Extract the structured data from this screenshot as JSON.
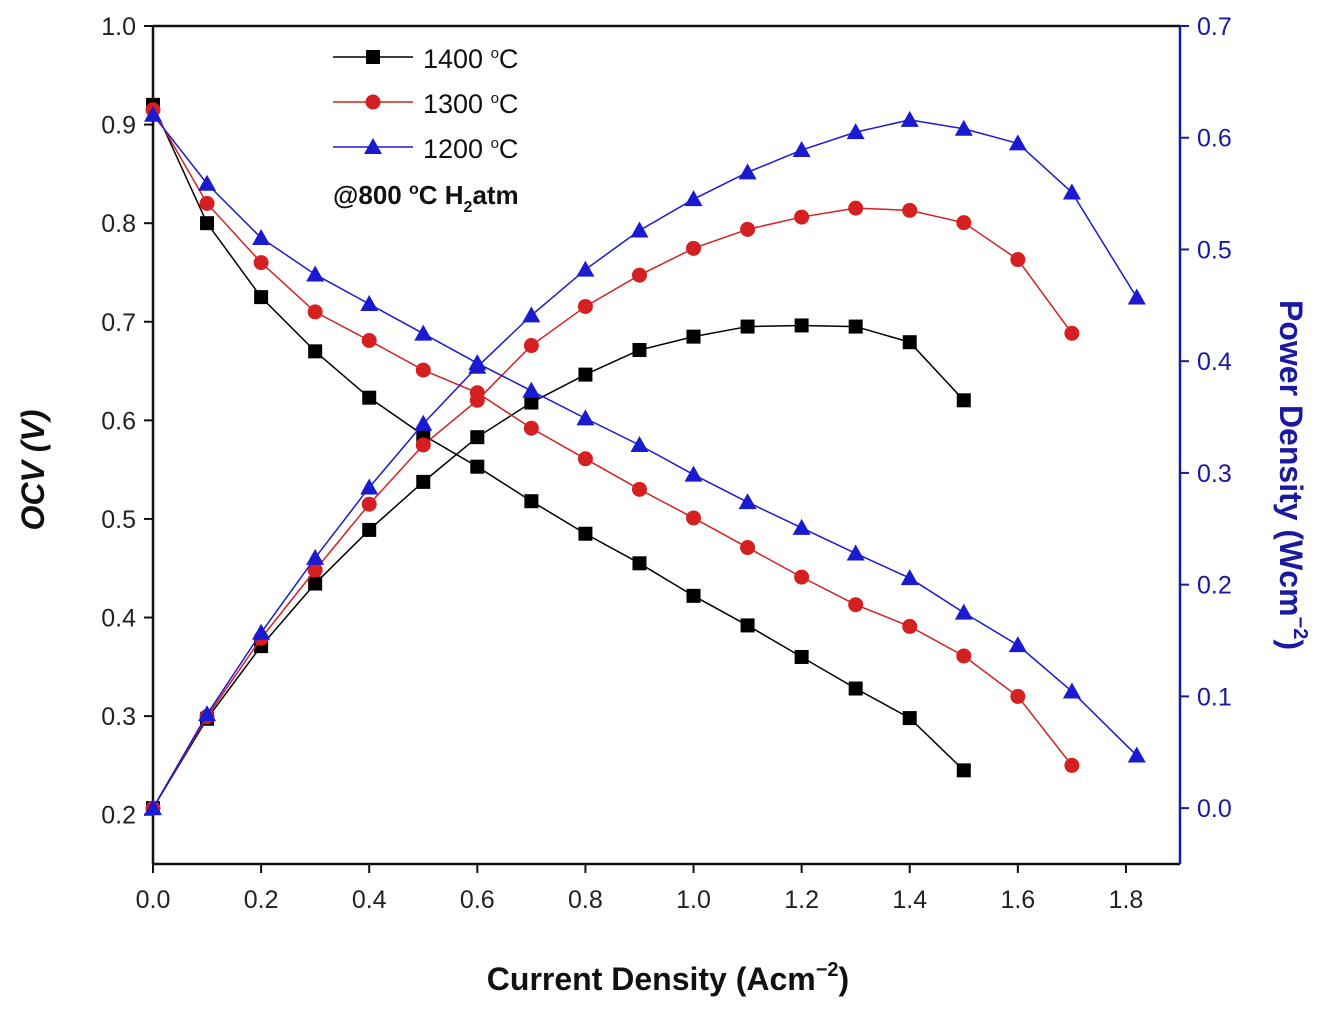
{
  "chart_data": {
    "type": "line",
    "title": "",
    "xlabel": "Current Density (Acm",
    "xlabel_sup": "−2",
    "xlabel_end": ")",
    "ylabel_left": "OCV (V)",
    "ylabel_right": "Power Density (Wcm",
    "ylabel_right_sup": "−2",
    "ylabel_right_end": ")",
    "xlim": [
      0.0,
      1.9
    ],
    "ylim_left": [
      0.15,
      1.0
    ],
    "ylim_right": [
      -0.05,
      0.7
    ],
    "x_ticks": [
      "0.0",
      "0.2",
      "0.4",
      "0.6",
      "0.8",
      "1.0",
      "1.2",
      "1.4",
      "1.6",
      "1.8"
    ],
    "y_left_ticks": [
      "0.2",
      "0.3",
      "0.4",
      "0.5",
      "0.6",
      "0.7",
      "0.8",
      "0.9",
      "1.0"
    ],
    "y_right_ticks": [
      "0.0",
      "0.1",
      "0.2",
      "0.3",
      "0.4",
      "0.5",
      "0.6",
      "0.7"
    ],
    "right_axis_color": "#1a1aa0",
    "annotation": {
      "prefix": "@800 ",
      "degree": "o",
      "mid": "C H",
      "sub": "2",
      "suffix": "atm"
    },
    "legend_degree": "o",
    "legend_unit": "C",
    "series": [
      {
        "name": "1400",
        "color": "#000000",
        "marker": "square",
        "x": [
          0.0,
          0.1,
          0.2,
          0.3,
          0.4,
          0.5,
          0.6,
          0.7,
          0.8,
          0.9,
          1.0,
          1.1,
          1.2,
          1.3,
          1.4,
          1.5
        ],
        "voltage": [
          0.92,
          0.8,
          0.725,
          0.67,
          0.623,
          0.585,
          0.553,
          0.518,
          0.485,
          0.455,
          0.422,
          0.392,
          0.36,
          0.328,
          0.298,
          0.245
        ],
        "power": [
          0.0,
          0.08,
          0.145,
          0.201,
          0.249,
          0.292,
          0.332,
          0.363,
          0.388,
          0.41,
          0.422,
          0.431,
          0.432,
          0.431,
          0.417,
          0.365
        ]
      },
      {
        "name": "1300",
        "color": "#d42020",
        "marker": "circle",
        "x": [
          0.0,
          0.1,
          0.2,
          0.3,
          0.4,
          0.5,
          0.6,
          0.7,
          0.8,
          0.9,
          1.0,
          1.1,
          1.2,
          1.3,
          1.4,
          1.5,
          1.6,
          1.7
        ],
        "voltage": [
          0.915,
          0.82,
          0.76,
          0.71,
          0.681,
          0.651,
          0.628,
          0.592,
          0.561,
          0.53,
          0.501,
          0.471,
          0.441,
          0.413,
          0.391,
          0.361,
          0.32,
          0.25
        ],
        "power": [
          0.0,
          0.082,
          0.152,
          0.213,
          0.272,
          0.325,
          0.365,
          0.414,
          0.449,
          0.477,
          0.501,
          0.518,
          0.529,
          0.537,
          0.535,
          0.524,
          0.491,
          0.425
        ]
      },
      {
        "name": "1200",
        "color": "#1a1ad0",
        "marker": "triangle",
        "x": [
          0.0,
          0.1,
          0.2,
          0.3,
          0.4,
          0.5,
          0.6,
          0.7,
          0.8,
          0.9,
          1.0,
          1.1,
          1.2,
          1.3,
          1.4,
          1.5,
          1.6,
          1.7,
          1.82
        ],
        "voltage": [
          0.91,
          0.84,
          0.785,
          0.748,
          0.718,
          0.688,
          0.658,
          0.63,
          0.602,
          0.575,
          0.545,
          0.517,
          0.491,
          0.465,
          0.44,
          0.405,
          0.372,
          0.325,
          0.26
        ],
        "power": [
          0.0,
          0.084,
          0.157,
          0.224,
          0.287,
          0.344,
          0.395,
          0.441,
          0.482,
          0.517,
          0.545,
          0.569,
          0.589,
          0.605,
          0.616,
          0.608,
          0.595,
          0.551,
          0.457
        ]
      }
    ]
  }
}
